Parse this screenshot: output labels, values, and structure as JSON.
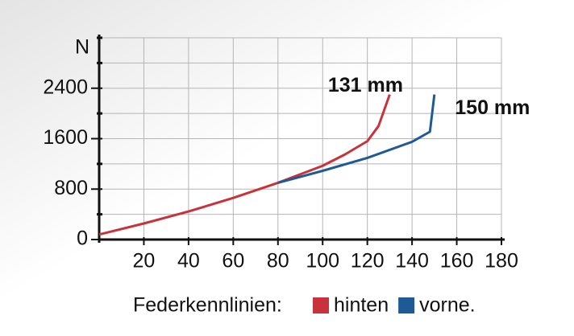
{
  "chart_data": {
    "type": "line",
    "y_axis_label": "N",
    "xlim": [
      0,
      180
    ],
    "xticks": [
      20,
      40,
      60,
      80,
      100,
      120,
      140,
      160,
      180
    ],
    "ylim": [
      0,
      3200
    ],
    "yticks": [
      0,
      800,
      1600,
      2400
    ],
    "yminorticks": [
      400,
      1200,
      2000,
      2800,
      3200
    ],
    "grid": true,
    "legend_title": "Federkennlinien:",
    "series": [
      {
        "name": "hinten",
        "annotation": "131 mm",
        "color": "#c8323a",
        "x": [
          0,
          20,
          40,
          60,
          80,
          100,
          110,
          120,
          125,
          130
        ],
        "values": [
          80,
          255,
          445,
          660,
          900,
          1170,
          1350,
          1560,
          1800,
          2300
        ]
      },
      {
        "name": "vorne.",
        "annotation": "150 mm",
        "color": "#1d5a96",
        "x": [
          80,
          100,
          120,
          140,
          148,
          150
        ],
        "values": [
          900,
          1090,
          1295,
          1550,
          1710,
          2300
        ]
      }
    ]
  }
}
